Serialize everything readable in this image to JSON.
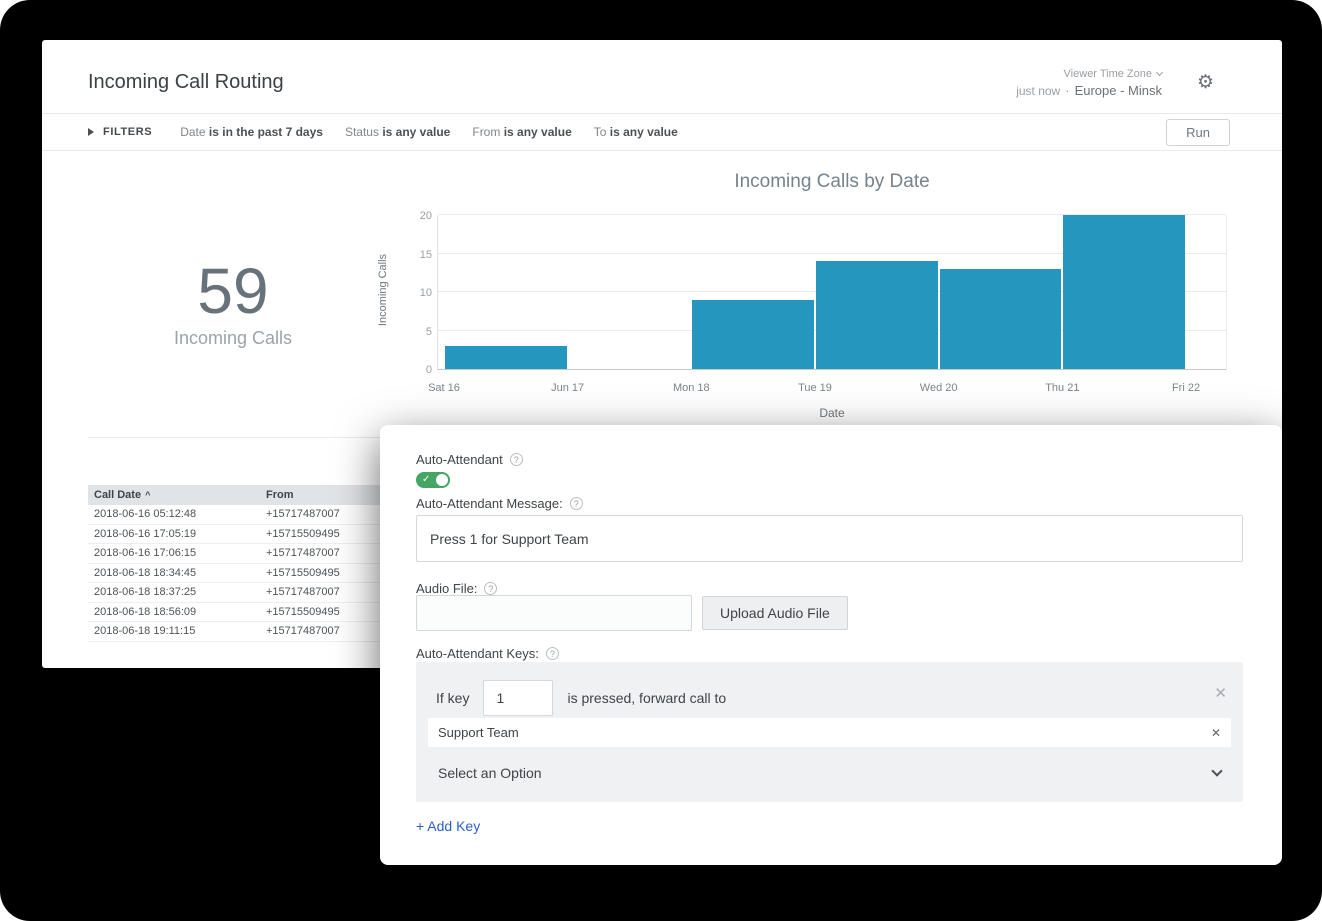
{
  "header": {
    "title": "Incoming Call Routing",
    "updated": "just now",
    "dot": "·",
    "timezone_label": "Viewer Time Zone",
    "timezone_value": "Europe - Minsk"
  },
  "filters": {
    "label": "FILTERS",
    "items": [
      {
        "field": "Date",
        "condition": "is in the past 7 days"
      },
      {
        "field": "Status",
        "condition": "is any value"
      },
      {
        "field": "From",
        "condition": "is any value"
      },
      {
        "field": "To",
        "condition": "is any value"
      }
    ],
    "run_label": "Run"
  },
  "summary_tile": {
    "value": "59",
    "label": "Incoming Calls"
  },
  "chart_data": {
    "type": "bar",
    "title": "Incoming Calls by Date",
    "xlabel": "Date",
    "ylabel": "Incoming Calls",
    "categories": [
      "Sat 16",
      "Jun 17",
      "Mon 18",
      "Tue 19",
      "Wed 20",
      "Thu 21",
      "Fri 22"
    ],
    "values": [
      3,
      0,
      9,
      14,
      13,
      20,
      0
    ],
    "ylim": [
      0,
      20
    ],
    "yticks": [
      0,
      5,
      10,
      15,
      20
    ],
    "grid": "horizontal",
    "legend": "none"
  },
  "table": {
    "columns": [
      "Call Date",
      "From"
    ],
    "sort": {
      "column": "Call Date",
      "direction": "asc"
    },
    "rows": [
      [
        "2018-06-16 05:12:48",
        "+15717487007"
      ],
      [
        "2018-06-16 17:05:19",
        "+15715509495"
      ],
      [
        "2018-06-16 17:06:15",
        "+15717487007"
      ],
      [
        "2018-06-18 18:34:45",
        "+15715509495"
      ],
      [
        "2018-06-18 18:37:25",
        "+15717487007"
      ],
      [
        "2018-06-18 18:56:09",
        "+15715509495"
      ],
      [
        "2018-06-18 19:11:15",
        "+15717487007"
      ]
    ]
  },
  "panel": {
    "auto_attendant_label": "Auto-Attendant",
    "toggle_on": true,
    "message_label": "Auto-Attendant Message:",
    "message_value": "Press 1 for Support Team",
    "audio_label": "Audio File:",
    "audio_value": "",
    "upload_button": "Upload Audio File",
    "keys_label": "Auto-Attendant Keys:",
    "key_row": {
      "prefix": "If key",
      "key_value": "1",
      "suffix": "is pressed, forward call to",
      "target_value": "Support Team",
      "option_placeholder": "Select an Option"
    },
    "add_key_label": "+ Add Key"
  },
  "icons": {
    "gear": "⚙",
    "help": "?",
    "check": "✓",
    "close": "✕",
    "sort_asc": "^"
  },
  "colors": {
    "bar": "#2596be",
    "toggle_on": "#45a564",
    "add_key": "#2b5fc9"
  }
}
